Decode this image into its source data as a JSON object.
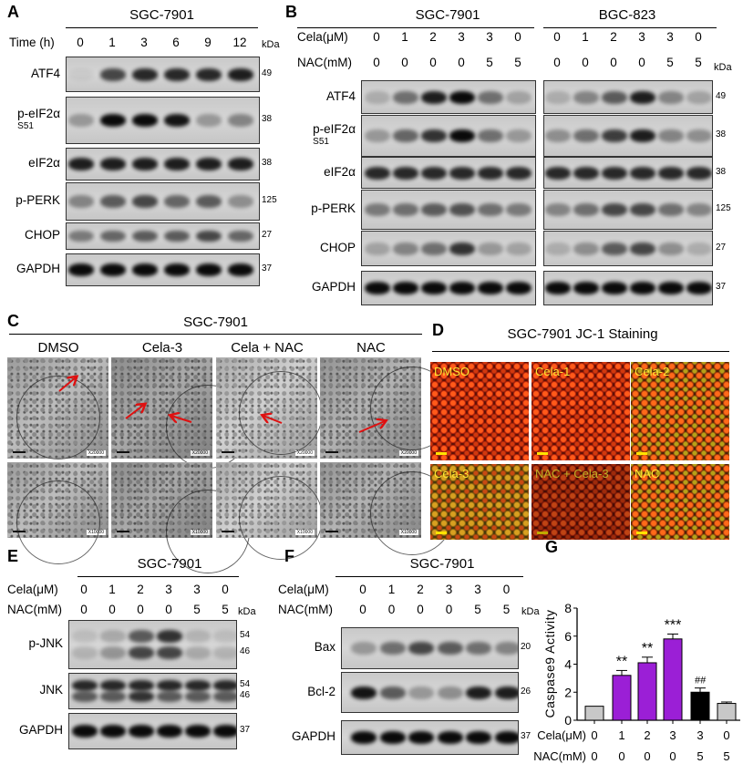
{
  "panelA": {
    "label": "A",
    "cell_line": "SGC-7901",
    "time_label": "Time (h)",
    "lanes": [
      "0",
      "1",
      "3",
      "6",
      "9",
      "12"
    ],
    "kda": "kDa",
    "rows": [
      {
        "name": "ATF4",
        "mw": [
          "49"
        ],
        "bands": [
          [
            0.05,
            0.7,
            0.85,
            0.85,
            0.85,
            0.9
          ]
        ]
      },
      {
        "name": "p-eIF2α",
        "sub": "S51",
        "mw": [
          "38"
        ],
        "bands": [
          [
            0.3,
            1,
            1,
            0.95,
            0.3,
            0.4
          ]
        ]
      },
      {
        "name": "eIF2α",
        "mw": [
          "38"
        ],
        "bands": [
          [
            0.9,
            0.9,
            0.9,
            0.9,
            0.9,
            0.9
          ]
        ]
      },
      {
        "name": "p-PERK",
        "mw": [
          "125"
        ],
        "bands": [
          [
            0.4,
            0.6,
            0.7,
            0.55,
            0.6,
            0.35
          ]
        ]
      },
      {
        "name": "CHOP",
        "mw": [
          "27"
        ],
        "bands": [
          [
            0.45,
            0.55,
            0.6,
            0.6,
            0.7,
            0.55
          ]
        ]
      },
      {
        "name": "GAPDH",
        "mw": [
          "37"
        ],
        "bands": [
          [
            1,
            1,
            1,
            1,
            1,
            1
          ]
        ]
      }
    ]
  },
  "panelB": {
    "label": "B",
    "cell_lines": [
      "SGC-7901",
      "BGC-823"
    ],
    "cela_label": "Cela(μM)",
    "nac_label": "NAC(mM)",
    "cela": [
      "0",
      "1",
      "2",
      "3",
      "3",
      "0"
    ],
    "nac": [
      "0",
      "0",
      "0",
      "0",
      "5",
      "5"
    ],
    "kda": "kDa",
    "rows": [
      {
        "name": "ATF4",
        "mw": [
          "49"
        ],
        "left": [
          [
            0.2,
            0.5,
            0.9,
            1,
            0.5,
            0.25
          ]
        ],
        "right": [
          [
            0.2,
            0.4,
            0.6,
            0.9,
            0.4,
            0.25
          ]
        ]
      },
      {
        "name": "p-eIF2α",
        "sub": "S51",
        "mw": [
          "38"
        ],
        "left": [
          [
            0.3,
            0.55,
            0.8,
            1,
            0.5,
            0.3
          ]
        ],
        "right": [
          [
            0.35,
            0.5,
            0.75,
            0.9,
            0.4,
            0.35
          ]
        ]
      },
      {
        "name": "eIF2α",
        "mw": [
          "38"
        ],
        "left": [
          [
            0.85,
            0.85,
            0.85,
            0.85,
            0.85,
            0.85
          ]
        ],
        "right": [
          [
            0.85,
            0.85,
            0.85,
            0.85,
            0.85,
            0.85
          ]
        ]
      },
      {
        "name": "p-PERK",
        "mw": [
          "125"
        ],
        "left": [
          [
            0.45,
            0.5,
            0.6,
            0.65,
            0.5,
            0.45
          ]
        ],
        "right": [
          [
            0.4,
            0.5,
            0.7,
            0.7,
            0.5,
            0.4
          ]
        ]
      },
      {
        "name": "CHOP",
        "mw": [
          "27"
        ],
        "left": [
          [
            0.25,
            0.4,
            0.5,
            0.8,
            0.3,
            0.25
          ]
        ],
        "right": [
          [
            0.2,
            0.35,
            0.6,
            0.7,
            0.35,
            0.2
          ]
        ]
      },
      {
        "name": "GAPDH",
        "mw": [
          "37"
        ],
        "left": [
          [
            1,
            1,
            1,
            1,
            1,
            1
          ]
        ],
        "right": [
          [
            1,
            1,
            1,
            1,
            1,
            1
          ]
        ]
      }
    ]
  },
  "panelC": {
    "label": "C",
    "cell_line": "SGC-7901",
    "groups": [
      "DMSO",
      "Cela-3",
      "Cela + NAC",
      "NAC"
    ],
    "mag_top": "X20000",
    "mag_bottom": "X10000"
  },
  "panelD": {
    "label": "D",
    "title": "SGC-7901  JC-1  Staining",
    "images": [
      "DMSO",
      "Cela-1",
      "Cela-2",
      "Cela-3",
      "NAC + Cela-3",
      "NAC"
    ],
    "colors": {
      "label": "#ffe833",
      "red": "#ff5a1a",
      "green": "#d8a020"
    }
  },
  "panelE": {
    "label": "E",
    "cell_line": "SGC-7901",
    "cela_label": "Cela(μM)",
    "nac_label": "NAC(mM)",
    "cela": [
      "0",
      "1",
      "2",
      "3",
      "3",
      "0"
    ],
    "nac": [
      "0",
      "0",
      "0",
      "0",
      "5",
      "5"
    ],
    "kda": "kDa",
    "rows": [
      {
        "name": "p-JNK",
        "mw": [
          "54",
          "46"
        ],
        "bands": [
          [
            0.1,
            0.2,
            0.6,
            0.8,
            0.15,
            0.1
          ],
          [
            0.15,
            0.3,
            0.7,
            0.7,
            0.2,
            0.15
          ]
        ]
      },
      {
        "name": "JNK",
        "mw": [
          "54",
          "46"
        ],
        "bands": [
          [
            0.85,
            0.85,
            0.85,
            0.85,
            0.85,
            0.85
          ],
          [
            0.6,
            0.6,
            0.8,
            0.6,
            0.6,
            0.6
          ]
        ]
      },
      {
        "name": "GAPDH",
        "mw": [
          "37"
        ],
        "bands": [
          [
            1,
            1,
            1,
            1,
            1,
            1
          ]
        ]
      }
    ]
  },
  "panelF": {
    "label": "F",
    "cell_line": "SGC-7901",
    "cela_label": "Cela(μM)",
    "nac_label": "NAC(mM)",
    "cela": [
      "0",
      "1",
      "2",
      "3",
      "3",
      "0"
    ],
    "nac": [
      "0",
      "0",
      "0",
      "0",
      "5",
      "5"
    ],
    "kda": "kDa",
    "rows": [
      {
        "name": "Bax",
        "mw": [
          "20"
        ],
        "bands": [
          [
            0.3,
            0.5,
            0.7,
            0.6,
            0.5,
            0.4
          ]
        ]
      },
      {
        "name": "Bcl-2",
        "mw": [
          "26"
        ],
        "bands": [
          [
            0.95,
            0.6,
            0.3,
            0.35,
            0.9,
            0.9
          ]
        ]
      },
      {
        "name": "GAPDH",
        "mw": [
          "37"
        ],
        "bands": [
          [
            1,
            1,
            1,
            1,
            1,
            1
          ]
        ]
      }
    ]
  },
  "chart_data": {
    "type": "bar",
    "label": "G",
    "ylabel": "Caspase9 Activity",
    "ylim": [
      0,
      8
    ],
    "yticks": [
      "0",
      "2",
      "4",
      "6",
      "8"
    ],
    "row_labels": [
      "Cela(μM)",
      "NAC(mM)"
    ],
    "categories": [
      {
        "cela": "0",
        "nac": "0"
      },
      {
        "cela": "1",
        "nac": "0"
      },
      {
        "cela": "2",
        "nac": "0"
      },
      {
        "cela": "3",
        "nac": "0"
      },
      {
        "cela": "3",
        "nac": "5"
      },
      {
        "cela": "0",
        "nac": "5"
      }
    ],
    "values": [
      1.0,
      3.2,
      4.1,
      5.8,
      2.0,
      1.2
    ],
    "errors": [
      0,
      0.35,
      0.4,
      0.35,
      0.3,
      0.1
    ],
    "annotations": [
      "",
      "**",
      "**",
      "***",
      "##",
      ""
    ],
    "colors": [
      "#c8c8c8",
      "#9b1fd6",
      "#9b1fd6",
      "#9b1fd6",
      "#000000",
      "#c8c8c8"
    ]
  }
}
